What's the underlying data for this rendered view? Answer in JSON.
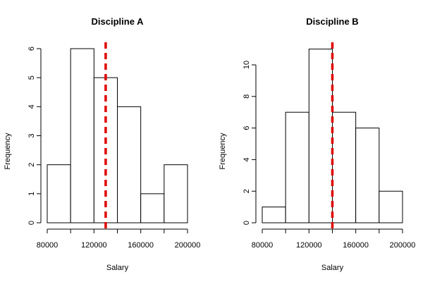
{
  "chart_data": [
    {
      "type": "bar",
      "title": "Discipline A",
      "xlabel": "Salary",
      "ylabel": "Frequency",
      "bins": [
        {
          "from": 80000,
          "to": 100000,
          "count": 2
        },
        {
          "from": 100000,
          "to": 120000,
          "count": 6
        },
        {
          "from": 120000,
          "to": 140000,
          "count": 5
        },
        {
          "from": 140000,
          "to": 160000,
          "count": 4
        },
        {
          "from": 160000,
          "to": 180000,
          "count": 1
        },
        {
          "from": 180000,
          "to": 200000,
          "count": 2
        }
      ],
      "xlim": [
        80000,
        200000
      ],
      "ylim": [
        0,
        6
      ],
      "xticks": [
        80000,
        100000,
        120000,
        140000,
        160000,
        180000,
        200000
      ],
      "xtick_labels": [
        "80000",
        "",
        "120000",
        "",
        "160000",
        "",
        "200000"
      ],
      "yticks": [
        0,
        1,
        2,
        3,
        4,
        5,
        6
      ],
      "ytick_labels": [
        "0",
        "1",
        "2",
        "3",
        "4",
        "5",
        "6"
      ],
      "reference_line": {
        "x": 130000,
        "color": "#e00000",
        "style": "dashed"
      }
    },
    {
      "type": "bar",
      "title": "Discipline B",
      "xlabel": "Salary",
      "ylabel": "Frequency",
      "bins": [
        {
          "from": 80000,
          "to": 100000,
          "count": 1
        },
        {
          "from": 100000,
          "to": 120000,
          "count": 7
        },
        {
          "from": 120000,
          "to": 140000,
          "count": 11
        },
        {
          "from": 140000,
          "to": 160000,
          "count": 7
        },
        {
          "from": 160000,
          "to": 180000,
          "count": 6
        },
        {
          "from": 180000,
          "to": 200000,
          "count": 2
        }
      ],
      "xlim": [
        80000,
        200000
      ],
      "ylim": [
        0,
        11
      ],
      "xticks": [
        80000,
        100000,
        120000,
        140000,
        160000,
        180000,
        200000
      ],
      "xtick_labels": [
        "80000",
        "",
        "120000",
        "",
        "160000",
        "",
        "200000"
      ],
      "yticks": [
        0,
        2,
        4,
        6,
        8,
        10
      ],
      "ytick_labels": [
        "0",
        "2",
        "4",
        "6",
        "8",
        "10"
      ],
      "reference_line": {
        "x": 140000,
        "color": "#e00000",
        "style": "dashed"
      }
    }
  ]
}
